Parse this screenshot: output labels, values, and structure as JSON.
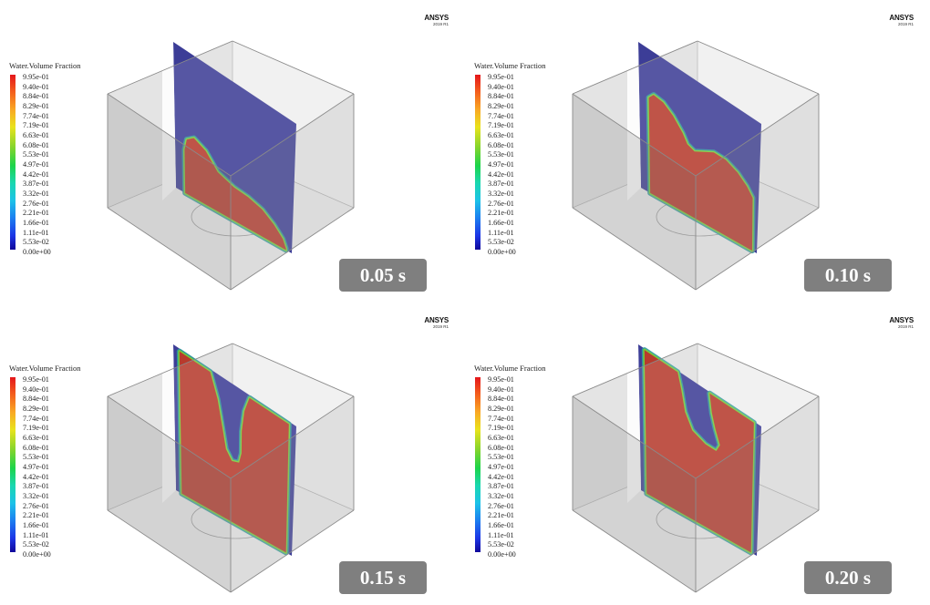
{
  "panels": [
    {
      "logo": "ANSYS",
      "version": "2019 R1",
      "legend": {
        "title": "Water.Volume Fraction",
        "ticks": [
          "9.95e-01",
          "9.40e-01",
          "8.84e-01",
          "8.29e-01",
          "7.74e-01",
          "7.19e-01",
          "6.63e-01",
          "6.08e-01",
          "5.53e-01",
          "4.97e-01",
          "4.42e-01",
          "3.87e-01",
          "3.32e-01",
          "2.76e-01",
          "2.21e-01",
          "1.66e-01",
          "1.11e-01",
          "5.53e-02",
          "0.00e+00"
        ]
      },
      "time": "0.05 s"
    },
    {
      "logo": "ANSYS",
      "version": "2019 R1",
      "legend": {
        "title": "Water.Volume Fraction",
        "ticks": [
          "9.95e-01",
          "9.40e-01",
          "8.84e-01",
          "8.29e-01",
          "7.74e-01",
          "7.19e-01",
          "6.63e-01",
          "6.08e-01",
          "5.53e-01",
          "4.97e-01",
          "4.42e-01",
          "3.87e-01",
          "3.32e-01",
          "2.76e-01",
          "2.21e-01",
          "1.66e-01",
          "1.11e-01",
          "5.53e-02",
          "0.00e+00"
        ]
      },
      "time": "0.10 s"
    },
    {
      "logo": "ANSYS",
      "version": "2019 R1",
      "legend": {
        "title": "Water.Volume Fraction",
        "ticks": [
          "9.95e-01",
          "9.40e-01",
          "8.84e-01",
          "8.29e-01",
          "7.74e-01",
          "7.19e-01",
          "6.63e-01",
          "6.08e-01",
          "5.53e-01",
          "4.97e-01",
          "4.42e-01",
          "3.87e-01",
          "3.32e-01",
          "2.76e-01",
          "2.21e-01",
          "1.66e-01",
          "1.11e-01",
          "5.53e-02",
          "0.00e+00"
        ]
      },
      "time": "0.15 s"
    },
    {
      "logo": "ANSYS",
      "version": "2019 R1",
      "legend": {
        "title": "Water.Volume Fraction",
        "ticks": [
          "9.95e-01",
          "9.40e-01",
          "8.84e-01",
          "8.29e-01",
          "7.74e-01",
          "7.19e-01",
          "6.63e-01",
          "6.08e-01",
          "5.53e-01",
          "4.97e-01",
          "4.42e-01",
          "3.87e-01",
          "3.32e-01",
          "2.76e-01",
          "2.21e-01",
          "1.66e-01",
          "1.11e-01",
          "5.53e-02",
          "0.00e+00"
        ]
      },
      "time": "0.20 s"
    }
  ],
  "colors": {
    "air": "#3c3d97",
    "water": "#b83a2c",
    "interface": "#2fb07a",
    "box_edge": "#8a8a8a",
    "badge": "#7f7f7f"
  }
}
